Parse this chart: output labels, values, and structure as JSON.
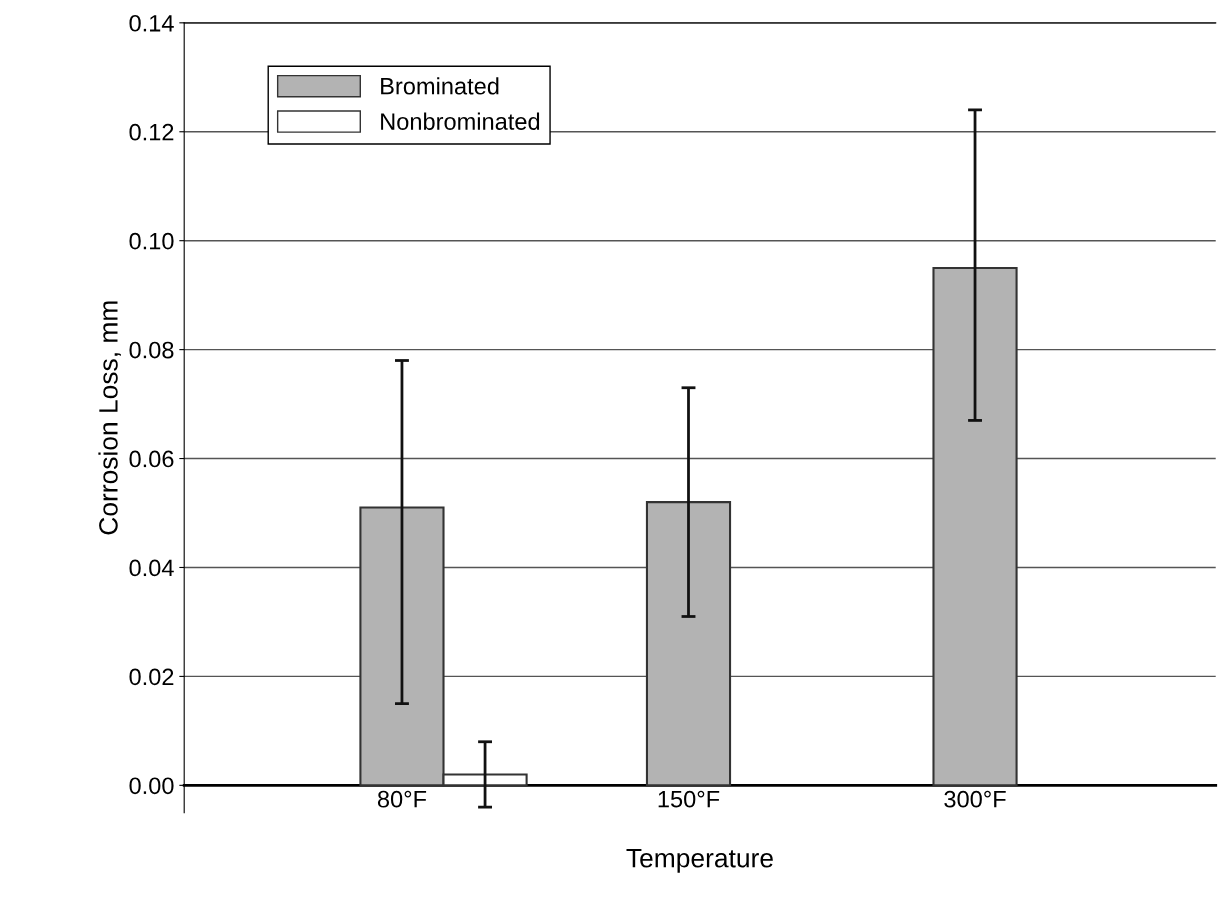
{
  "chart_data": {
    "type": "bar",
    "xlabel": "Temperature",
    "ylabel": "Corrosion Loss, mm",
    "categories": [
      "80°F",
      "150°F",
      "300°F"
    ],
    "series": [
      {
        "name": "Brominated",
        "color": "#b3b3b3",
        "values": [
          0.051,
          0.052,
          0.095
        ],
        "errors": [
          [
            0.015,
            0.078
          ],
          [
            0.031,
            0.073
          ],
          [
            0.067,
            0.124
          ]
        ]
      },
      {
        "name": "Nonbrominated",
        "color": "#ffffff",
        "values": [
          0.002,
          null,
          null
        ],
        "errors": [
          [
            -0.004,
            0.008
          ],
          null,
          null
        ]
      }
    ],
    "ylim": [
      -0.005,
      0.14
    ],
    "yticks": [
      {
        "value": 0,
        "label": "0.00"
      },
      {
        "value": 0.02,
        "label": "0.02"
      },
      {
        "value": 0.04,
        "label": "0.04"
      },
      {
        "value": 0.06,
        "label": "0.06"
      },
      {
        "value": 0.08,
        "label": "0.08"
      },
      {
        "value": 0.1,
        "label": "0.10"
      },
      {
        "value": 0.12,
        "label": "0.12"
      },
      {
        "value": 0.14,
        "label": "0.14"
      }
    ],
    "grid": "y",
    "legend": "top left"
  }
}
